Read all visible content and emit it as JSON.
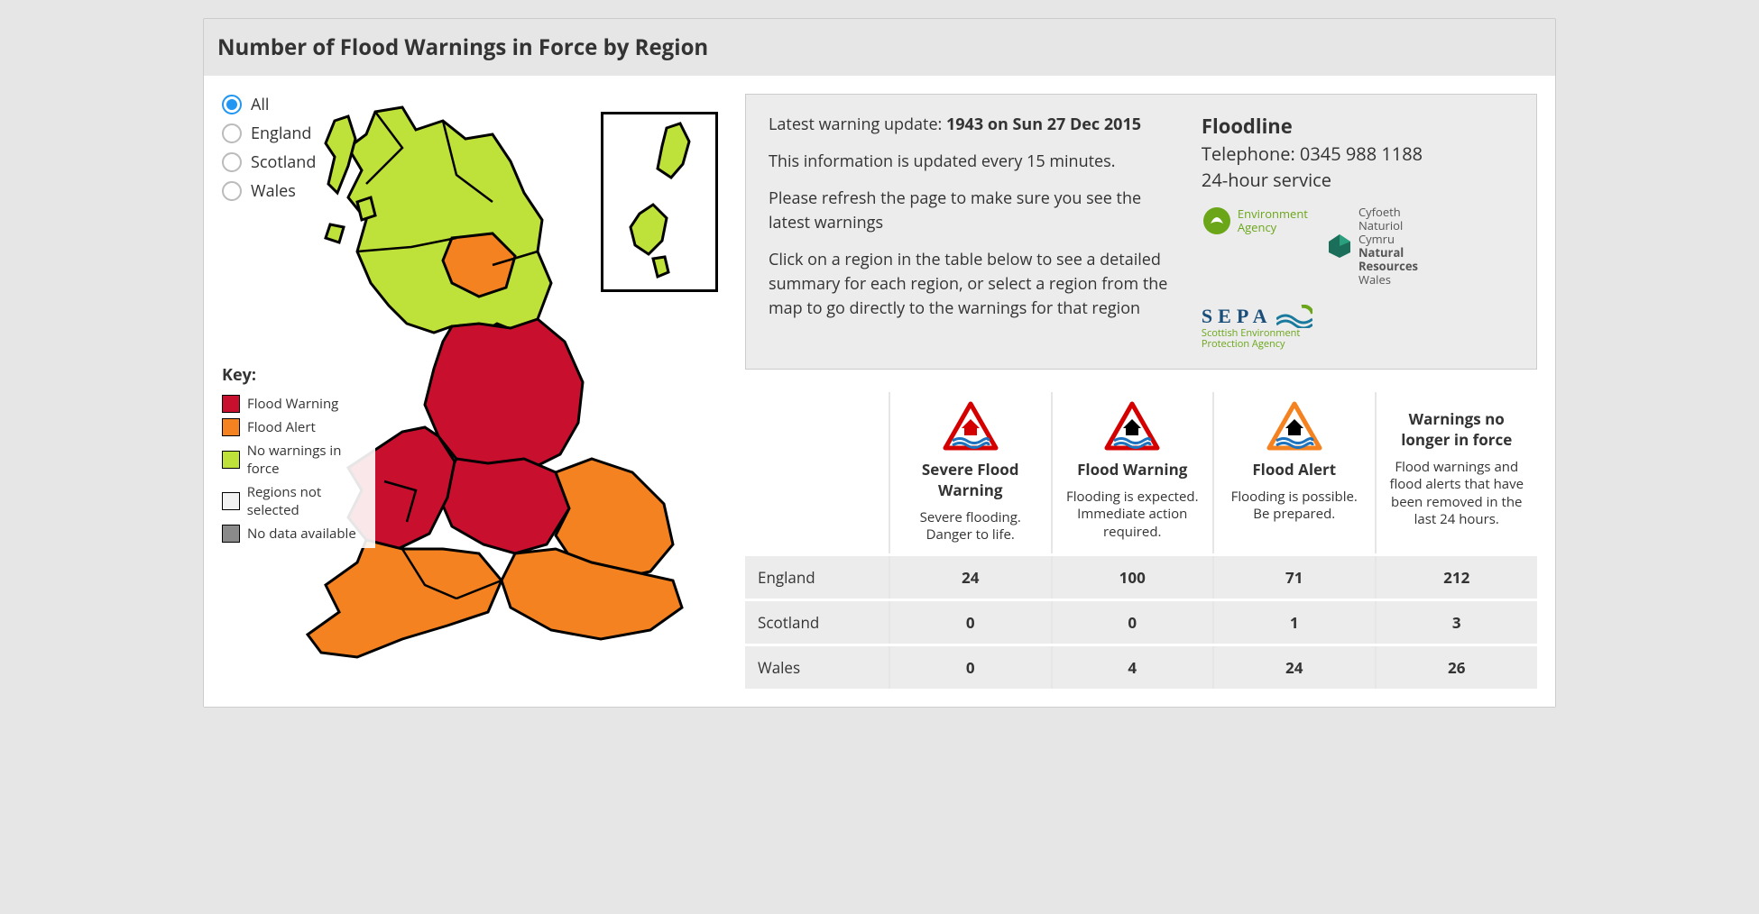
{
  "title": "Number of Flood Warnings in Force by Region",
  "colors": {
    "flood_warning": "#c8102e",
    "flood_alert": "#f58220",
    "no_warnings": "#bfe23a",
    "not_selected": "#f2f2f2",
    "no_data": "#8a8a8a",
    "radio_active": "#2196f3"
  },
  "filters": {
    "options": [
      "All",
      "England",
      "Scotland",
      "Wales"
    ],
    "selected": "All"
  },
  "key": {
    "title": "Key:",
    "items": [
      {
        "label": "Flood Warning",
        "color": "#c8102e"
      },
      {
        "label": "Flood Alert",
        "color": "#f58220"
      },
      {
        "label": "No warnings in force",
        "color": "#bfe23a"
      },
      {
        "label": "Regions not selected",
        "color": "#f2f2f2"
      },
      {
        "label": "No data available",
        "color": "#8a8a8a"
      }
    ]
  },
  "info": {
    "update_prefix": "Latest warning update: ",
    "update_value": "1943 on Sun 27 Dec 2015",
    "refresh_line": "This information is updated every 15 minutes.",
    "refresh_ask": "Please refresh the page to make sure you see the latest warnings",
    "instructions": "Click on a region in the table below to see a detailed summary for each region, or select a region from the map to go directly to the warnings for that region"
  },
  "floodline": {
    "title": "Floodline",
    "telephone": "Telephone: 0345 988 1188",
    "hours": "24-hour service",
    "logos": {
      "ea_line1": "Environment",
      "ea_line2": "Agency",
      "sepa_name": "SEPA",
      "sepa_sub1": "Scottish Environment",
      "sepa_sub2": "Protection Agency",
      "nrw_line1": "Cyfoeth",
      "nrw_line2": "Naturiol",
      "nrw_line3": "Cymru",
      "nrw_line4": "Natural",
      "nrw_line5": "Resources",
      "nrw_line6": "Wales"
    }
  },
  "table": {
    "columns": [
      {
        "title": "Severe Flood Warning",
        "desc": "Severe flooding. Danger to life.",
        "icon_border": "#d40000",
        "icon_fill": "#d40000",
        "icon_water": "#1e73be"
      },
      {
        "title": "Flood Warning",
        "desc": "Flooding is expected. Immediate action required.",
        "icon_border": "#d40000",
        "icon_fill": "#000000",
        "icon_water": "#1e73be"
      },
      {
        "title": "Flood Alert",
        "desc": "Flooding is possible. Be prepared.",
        "icon_border": "#f58220",
        "icon_fill": "#000000",
        "icon_water": "#1e73be"
      },
      {
        "title": "Warnings no longer in force",
        "desc": "Flood warnings and flood alerts that have been removed in the last 24 hours.",
        "icon_border": "",
        "icon_fill": "",
        "icon_water": ""
      }
    ],
    "rows": [
      {
        "region": "England",
        "values": [
          24,
          100,
          71,
          212
        ]
      },
      {
        "region": "Scotland",
        "values": [
          0,
          0,
          1,
          3
        ]
      },
      {
        "region": "Wales",
        "values": [
          0,
          4,
          24,
          26
        ]
      }
    ]
  }
}
